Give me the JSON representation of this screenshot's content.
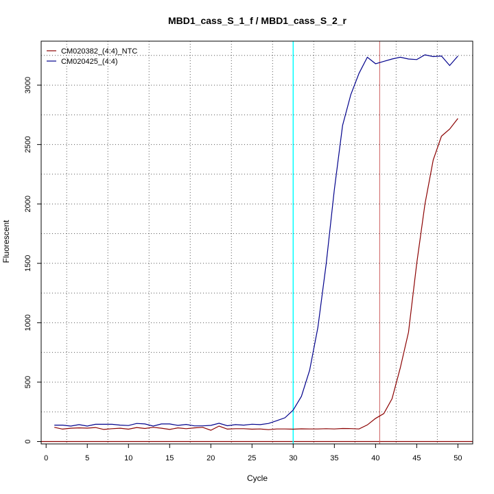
{
  "chart_data": {
    "type": "line",
    "title": "MBD1_cass_S_1_f / MBD1_cass_S_2_r",
    "xlabel": "Cycle",
    "ylabel": "Fluorescent",
    "xlim": [
      -0.6,
      51.8
    ],
    "ylim": [
      -20,
      3370
    ],
    "x_ticks": [
      0,
      5,
      10,
      15,
      20,
      25,
      30,
      35,
      40,
      45,
      50
    ],
    "y_ticks": [
      0,
      500,
      1000,
      1500,
      2000,
      2500,
      3000
    ],
    "grid": "dotted",
    "legend_position": "top-left",
    "x": [
      1,
      2,
      3,
      4,
      5,
      6,
      7,
      8,
      9,
      10,
      11,
      12,
      13,
      14,
      15,
      16,
      17,
      18,
      19,
      20,
      21,
      22,
      23,
      24,
      25,
      26,
      27,
      28,
      29,
      30,
      31,
      32,
      33,
      34,
      35,
      36,
      37,
      38,
      39,
      40,
      41,
      42,
      43,
      44,
      45,
      46,
      47,
      48,
      49,
      50
    ],
    "series": [
      {
        "name": "CM020382_(4:4)_NTC",
        "color": "#8b0000",
        "values": [
          120,
          105,
          112,
          115,
          113,
          118,
          102,
          108,
          112,
          104,
          118,
          110,
          120,
          112,
          102,
          115,
          108,
          115,
          120,
          95,
          130,
          105,
          108,
          108,
          104,
          106,
          100,
          106,
          106,
          104,
          107,
          106,
          106,
          108,
          106,
          110,
          109,
          106,
          140,
          195,
          235,
          360,
          620,
          920,
          1500,
          2000,
          2370,
          2570,
          2630,
          2720
        ]
      },
      {
        "name": "CM020425_(4:4)",
        "color": "#00008b",
        "values": [
          138,
          138,
          130,
          142,
          130,
          145,
          145,
          145,
          138,
          135,
          152,
          148,
          130,
          148,
          148,
          136,
          144,
          132,
          132,
          136,
          154,
          133,
          142,
          138,
          146,
          142,
          152,
          175,
          200,
          265,
          380,
          600,
          960,
          1490,
          2120,
          2660,
          2920,
          3100,
          3235,
          3180,
          3200,
          3220,
          3235,
          3220,
          3215,
          3255,
          3240,
          3245,
          3165,
          3245
        ]
      }
    ],
    "threshold_vertical": {
      "x": 30,
      "color": "#00ffff"
    },
    "ct_vertical": {
      "x": 40.5,
      "color": "#cd5c5c"
    },
    "baseline_horizontal": {
      "y": 0,
      "color": "#8b0000"
    }
  }
}
